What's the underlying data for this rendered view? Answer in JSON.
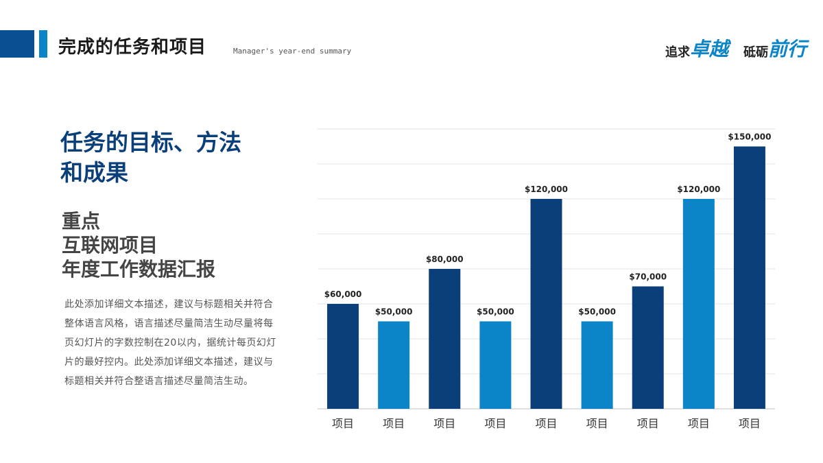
{
  "header": {
    "title": "完成的任务和项目",
    "subtitle": "Manager's year-end summary",
    "slogan": [
      {
        "small": "追求",
        "big": "卓越"
      },
      {
        "small": "砥砺",
        "big": "前行"
      }
    ]
  },
  "left": {
    "headline": "任务的目标、方法和成果",
    "sub_lines": [
      "重点",
      "互联网项目",
      "年度工作数据汇报"
    ],
    "description": "此处添加详细文本描述，建议与标题相关并符合整体语言风格，语言描述尽量简洁生动尽量将每页幻灯片的字数控制在20以内，据统计每页幻灯片的最好控内。此处添加详细文本描述，建议与标题相关并符合整语言描述尽量简洁生动。"
  },
  "chart_data": {
    "type": "bar",
    "categories": [
      "项目",
      "项目",
      "项目",
      "项目",
      "项目",
      "项目",
      "项目",
      "项目",
      "项目"
    ],
    "values": [
      60000,
      50000,
      80000,
      50000,
      120000,
      50000,
      70000,
      120000,
      150000
    ],
    "data_labels": [
      "$60,000",
      "$50,000",
      "$80,000",
      "$50,000",
      "$120,000",
      "$50,000",
      "$70,000",
      "$120,000",
      "$150,000"
    ],
    "ylim": [
      0,
      160000
    ],
    "grid": true,
    "colors": [
      "#0b3f7a",
      "#0b84c8",
      "#0b3f7a",
      "#0b84c8",
      "#0b3f7a",
      "#0b84c8",
      "#0b3f7a",
      "#0b84c8",
      "#0b3f7a"
    ]
  }
}
